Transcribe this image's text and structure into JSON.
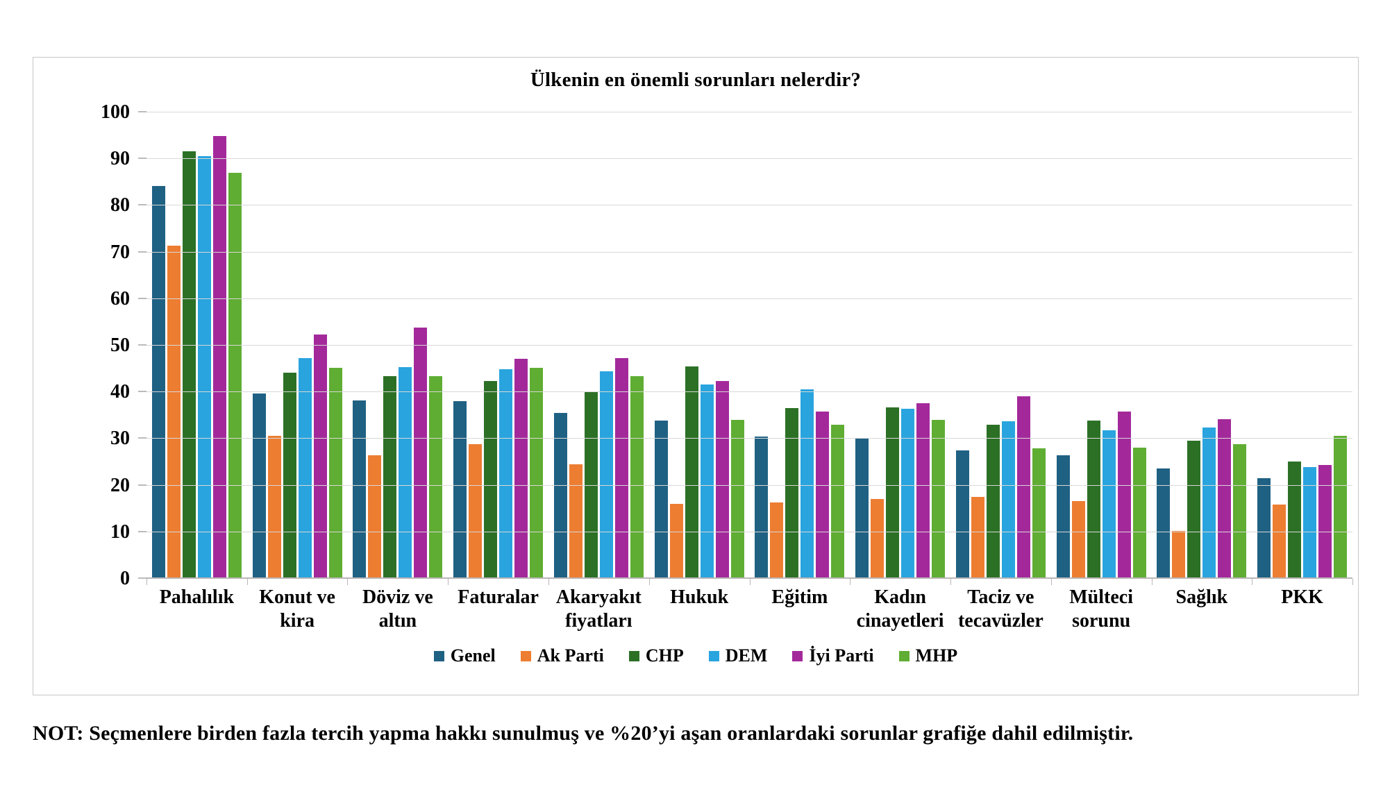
{
  "title": "Ülkenin en önemli sorunları nelerdir?",
  "note": "NOT: Seçmenlere birden fazla tercih yapma hakkı sunulmuş ve %20’yi aşan oranlardaki sorunlar grafiğe dahil edilmiştir.",
  "chart_data": {
    "type": "bar",
    "title": "Ülkenin en önemli sorunları nelerdir?",
    "xlabel": "",
    "ylabel": "",
    "ylim": [
      0,
      100
    ],
    "ytick_step": 10,
    "grid": true,
    "legend_position": "bottom",
    "categories": [
      "Pahalılık",
      "Konut ve kira",
      "Döviz ve altın",
      "Faturalar",
      "Akaryakıt fiyatları",
      "Hukuk",
      "Eğitim",
      "Kadın cinayetleri",
      "Taciz ve tecavüzler",
      "Mülteci sorunu",
      "Sağlık",
      "PKK"
    ],
    "series": [
      {
        "name": "Genel",
        "color": "#1F6183",
        "values": [
          84.2,
          39.8,
          38.2,
          38.1,
          35.6,
          33.9,
          30.5,
          30.2,
          27.5,
          26.5,
          23.7,
          21.6
        ]
      },
      {
        "name": "Ak Parti",
        "color": "#ED7D31",
        "values": [
          71.4,
          30.6,
          26.5,
          28.9,
          24.6,
          16.0,
          16.4,
          17.1,
          17.6,
          16.6,
          10.3,
          15.9
        ]
      },
      {
        "name": "CHP",
        "color": "#2C7026",
        "values": [
          91.7,
          44.2,
          43.4,
          42.4,
          40.2,
          45.6,
          36.6,
          36.8,
          33.1,
          33.9,
          29.6,
          25.2
        ]
      },
      {
        "name": "DEM",
        "color": "#29A4DE",
        "values": [
          90.6,
          47.3,
          45.4,
          44.9,
          44.5,
          41.7,
          40.7,
          36.5,
          33.8,
          31.9,
          32.4,
          24.0
        ]
      },
      {
        "name": "İyi Parti",
        "color": "#A3299B",
        "values": [
          95.0,
          52.4,
          53.9,
          47.2,
          47.3,
          42.4,
          35.9,
          37.6,
          39.2,
          35.9,
          34.2,
          24.4
        ]
      },
      {
        "name": "MHP",
        "color": "#5FAD33",
        "values": [
          87.0,
          45.2,
          43.4,
          45.2,
          43.4,
          34.1,
          33.1,
          34.1,
          28.0,
          28.1,
          28.9,
          30.7
        ]
      }
    ]
  }
}
